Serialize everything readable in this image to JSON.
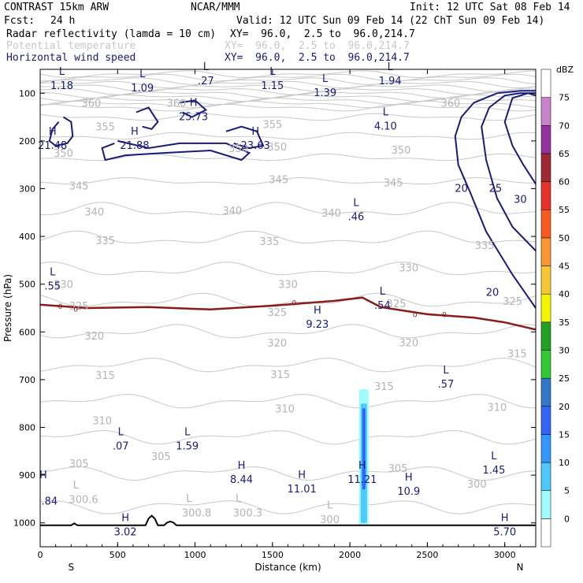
{
  "header": {
    "model": "CONTRAST 15km ARW",
    "org": "NCAR/MMM",
    "init": "Init: 12 UTC Sat 08 Feb 14",
    "fcst_label": "Fcst:",
    "fcst_value": "24 h",
    "valid": "Valid: 12 UTC Sun 09 Feb 14 (22 ChT Sun 09 Feb 14)",
    "fields": [
      {
        "name": "Radar reflectivity (lamda = 10 cm)",
        "xy": "XY=  96.0,  2.5 to  96.0,214.7",
        "color": "#000000"
      },
      {
        "name": "Potential temperature",
        "xy": "XY=  96.0,  2.5 to  96.0,214.7",
        "color": "#c8c8c8"
      },
      {
        "name": "Horizontal wind speed",
        "xy": "XY=  96.0,  2.5 to  96.0,214.7",
        "color": "#1a1a7a"
      }
    ]
  },
  "chart_data": {
    "type": "cross-section contour",
    "xlabel": "Distance (km)",
    "ylabel": "Pressure (hPa)",
    "xlim": [
      0,
      3200
    ],
    "ylim": [
      1050,
      50
    ],
    "x_ticks": [
      "0",
      "500",
      "1000",
      "1500",
      "2000",
      "2500",
      "3000"
    ],
    "y_ticks": [
      "100",
      "200",
      "300",
      "400",
      "500",
      "600",
      "700",
      "800",
      "900",
      "1000"
    ],
    "x_end_labels": {
      "left": "S",
      "right": "N"
    },
    "colorbar": {
      "unit": "dBZ",
      "levels": [
        "0",
        "5",
        "10",
        "15",
        "20",
        "25",
        "30",
        "35",
        "40",
        "45",
        "50",
        "55",
        "60",
        "65",
        "70",
        "75"
      ],
      "colors": [
        "#ffffff",
        "#9ffcfc",
        "#4fc8fc",
        "#3296fa",
        "#3264fa",
        "#3278c8",
        "#32c832",
        "#21a021",
        "#f5f500",
        "#f5c832",
        "#fa9632",
        "#fa5a1e",
        "#e63228",
        "#a02832",
        "#9632a0",
        "#c882c8",
        "#ffffff"
      ]
    },
    "theta_labels": [
      {
        "text": "360",
        "x": 330,
        "p": 120
      },
      {
        "text": "360",
        "x": 880,
        "p": 120
      },
      {
        "text": "360",
        "x": 2650,
        "p": 120
      },
      {
        "text": "355",
        "x": 420,
        "p": 170
      },
      {
        "text": "355",
        "x": 1500,
        "p": 165
      },
      {
        "text": "350",
        "x": 150,
        "p": 225
      },
      {
        "text": "350",
        "x": 1280,
        "p": 215
      },
      {
        "text": "350",
        "x": 1530,
        "p": 212
      },
      {
        "text": "350",
        "x": 2330,
        "p": 218
      },
      {
        "text": "345",
        "x": 250,
        "p": 293
      },
      {
        "text": "345",
        "x": 1540,
        "p": 280
      },
      {
        "text": "345",
        "x": 2280,
        "p": 287
      },
      {
        "text": "340",
        "x": 350,
        "p": 348
      },
      {
        "text": "340",
        "x": 1240,
        "p": 345
      },
      {
        "text": "340",
        "x": 1880,
        "p": 350
      },
      {
        "text": "335",
        "x": 420,
        "p": 408
      },
      {
        "text": "335",
        "x": 1480,
        "p": 410
      },
      {
        "text": "335",
        "x": 2870,
        "p": 418
      },
      {
        "text": "330",
        "x": 150,
        "p": 500
      },
      {
        "text": "330",
        "x": 1600,
        "p": 500
      },
      {
        "text": "330",
        "x": 2380,
        "p": 465
      },
      {
        "text": "325",
        "x": 250,
        "p": 545
      },
      {
        "text": "325",
        "x": 1530,
        "p": 558
      },
      {
        "text": "325",
        "x": 2300,
        "p": 540
      },
      {
        "text": "325",
        "x": 3050,
        "p": 535
      },
      {
        "text": "320",
        "x": 350,
        "p": 608
      },
      {
        "text": "320",
        "x": 1530,
        "p": 623
      },
      {
        "text": "320",
        "x": 2380,
        "p": 622
      },
      {
        "text": "315",
        "x": 420,
        "p": 690
      },
      {
        "text": "315",
        "x": 1550,
        "p": 689
      },
      {
        "text": "315",
        "x": 2220,
        "p": 713
      },
      {
        "text": "315",
        "x": 3080,
        "p": 645
      },
      {
        "text": "310",
        "x": 400,
        "p": 785
      },
      {
        "text": "310",
        "x": 1580,
        "p": 760
      },
      {
        "text": "310",
        "x": 2950,
        "p": 757
      },
      {
        "text": "305",
        "x": 250,
        "p": 875
      },
      {
        "text": "305",
        "x": 780,
        "p": 860
      },
      {
        "text": "305",
        "x": 2310,
        "p": 885
      },
      {
        "text": "300",
        "x": 2820,
        "p": 918
      },
      {
        "text": "300",
        "x": 1870,
        "p": 992
      }
    ],
    "theta_surface_labels": [
      {
        "text": "L",
        "x": 230,
        "p": 920
      },
      {
        "text": "300.6",
        "x": 280,
        "p": 950
      },
      {
        "text": "L",
        "x": 960,
        "p": 948
      },
      {
        "text": "300.8",
        "x": 1010,
        "p": 978
      },
      {
        "text": "L",
        "x": 1280,
        "p": 948
      },
      {
        "text": "300.3",
        "x": 1340,
        "p": 978
      },
      {
        "text": "L",
        "x": 1870,
        "p": 962
      }
    ],
    "wind_labels": [
      {
        "text": "20",
        "x": 2720,
        "p": 300
      },
      {
        "text": "25",
        "x": 2940,
        "p": 300
      },
      {
        "text": "30",
        "x": 3100,
        "p": 323
      },
      {
        "text": "20",
        "x": 2920,
        "p": 518
      },
      {
        "text": "0",
        "x": 130,
        "p": 545
      },
      {
        "text": "0",
        "x": 230,
        "p": 551
      },
      {
        "text": "0",
        "x": 1640,
        "p": 538
      },
      {
        "text": "0",
        "x": 2420,
        "p": 562
      },
      {
        "text": "0",
        "x": 2610,
        "p": 562
      }
    ],
    "extrema": [
      {
        "type": "L",
        "value": "1.18",
        "x": 140,
        "p": 55
      },
      {
        "type": "L",
        "value": "1.09",
        "x": 660,
        "p": 60
      },
      {
        "type": "L",
        "value": ".27",
        "x": 1070,
        "p": 45
      },
      {
        "type": "L",
        "value": "1.15",
        "x": 1500,
        "p": 55
      },
      {
        "type": "L",
        "value": "1.39",
        "x": 1840,
        "p": 70
      },
      {
        "type": "L",
        "value": "1.94",
        "x": 2260,
        "p": 45
      },
      {
        "type": "L",
        "value": "4.10",
        "x": 2230,
        "p": 140
      },
      {
        "type": "H",
        "value": "21.48",
        "x": 80,
        "p": 180
      },
      {
        "type": "H",
        "value": "21.88",
        "x": 610,
        "p": 180
      },
      {
        "type": "H",
        "value": "25.73",
        "x": 990,
        "p": 120
      },
      {
        "type": "H",
        "value": "23.63",
        "x": 1390,
        "p": 180
      },
      {
        "type": "L",
        "value": ".46",
        "x": 2040,
        "p": 330
      },
      {
        "type": "L",
        "value": ".55",
        "x": 80,
        "p": 475
      },
      {
        "type": "L",
        "value": ".54",
        "x": 2210,
        "p": 515
      },
      {
        "type": "H",
        "value": "9.23",
        "x": 1790,
        "p": 555
      },
      {
        "type": "L",
        "value": ".57",
        "x": 2620,
        "p": 680
      },
      {
        "type": "L",
        "value": ".07",
        "x": 520,
        "p": 810
      },
      {
        "type": "L",
        "value": "1.59",
        "x": 950,
        "p": 810
      },
      {
        "type": "H",
        "value": "8.44",
        "x": 1300,
        "p": 880
      },
      {
        "type": "H",
        "value": "11.01",
        "x": 1690,
        "p": 900
      },
      {
        "type": "H",
        "value": "11.21",
        "x": 2080,
        "p": 880
      },
      {
        "type": "H",
        "value": "10.9",
        "x": 2380,
        "p": 905
      },
      {
        "type": "L",
        "value": "1.45",
        "x": 2930,
        "p": 860
      },
      {
        "type": "H",
        "value": "",
        "x": 20,
        "p": 900
      },
      {
        "type": "",
        "value": ".84",
        "x": 60,
        "p": 925
      },
      {
        "type": "H",
        "value": "3.02",
        "x": 550,
        "p": 990
      },
      {
        "type": "H",
        "value": "5.70",
        "x": 3000,
        "p": 990
      }
    ]
  }
}
